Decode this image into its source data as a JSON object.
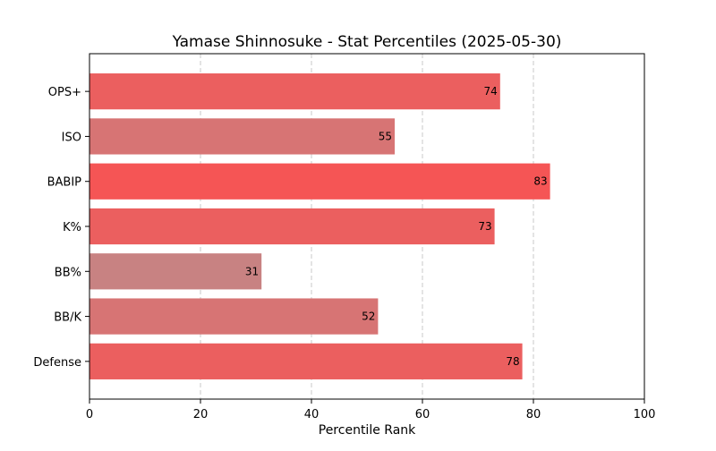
{
  "chart_data": {
    "type": "bar",
    "orientation": "horizontal",
    "title": "Yamase Shinnosuke - Stat Percentiles (2025-05-30)",
    "xlabel": "Percentile Rank",
    "ylabel": "",
    "xlim": [
      0,
      100
    ],
    "xticks": [
      0,
      20,
      40,
      60,
      80,
      100
    ],
    "grid": "vertical dashed",
    "categories": [
      "OPS+",
      "ISO",
      "BABIP",
      "K%",
      "BB%",
      "BB/K",
      "Defense"
    ],
    "values": [
      74,
      55,
      83,
      73,
      31,
      52,
      78
    ],
    "colors": [
      "#eb5f5f",
      "#d77474",
      "#f55555",
      "#eb5f5f",
      "#c88282",
      "#d77474",
      "#eb5f5f"
    ]
  }
}
